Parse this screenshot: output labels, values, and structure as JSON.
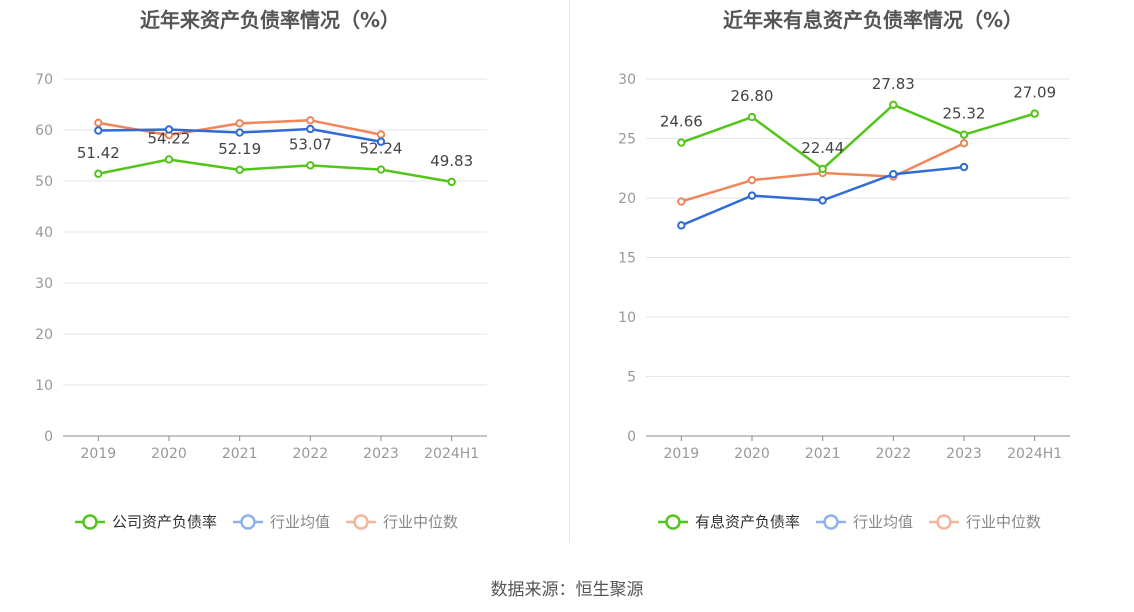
{
  "source_text": "数据来源：恒生聚源",
  "chart_data": [
    {
      "type": "line",
      "title": "近年来资产负债率情况（%）",
      "categories": [
        "2019",
        "2020",
        "2021",
        "2022",
        "2023",
        "2024H1"
      ],
      "ylim": [
        0,
        70
      ],
      "yticks": [
        0,
        10,
        20,
        30,
        40,
        50,
        60,
        70
      ],
      "grid": true,
      "legend_position": "bottom",
      "series": [
        {
          "name": "公司资产负债率",
          "color": "#52c41a",
          "values": [
            51.42,
            54.22,
            52.19,
            53.07,
            52.24,
            49.83
          ],
          "labels": [
            "51.42",
            "54.22",
            "52.19",
            "53.07",
            "52.24",
            "49.83"
          ]
        },
        {
          "name": "行业均值",
          "color": "#2f6bd6",
          "values": [
            59.9,
            60.1,
            59.5,
            60.2,
            57.7,
            null
          ]
        },
        {
          "name": "行业中位数",
          "color": "#f0855a",
          "values": [
            61.4,
            59.0,
            61.3,
            61.9,
            59.1,
            null
          ]
        }
      ]
    },
    {
      "type": "line",
      "title": "近年来有息资产负债率情况（%）",
      "categories": [
        "2019",
        "2020",
        "2021",
        "2022",
        "2023",
        "2024H1"
      ],
      "ylim": [
        0,
        30
      ],
      "yticks": [
        0,
        5,
        10,
        15,
        20,
        25,
        30
      ],
      "grid": true,
      "legend_position": "bottom",
      "series": [
        {
          "name": "有息资产负债率",
          "color": "#52c41a",
          "values": [
            24.66,
            26.8,
            22.44,
            27.83,
            25.32,
            27.09
          ],
          "labels": [
            "24.66",
            "26.80",
            "22.44",
            "27.83",
            "25.32",
            "27.09"
          ]
        },
        {
          "name": "行业均值",
          "color": "#2f6bd6",
          "values": [
            17.7,
            20.2,
            19.8,
            22.0,
            22.6,
            null
          ]
        },
        {
          "name": "行业中位数",
          "color": "#f0855a",
          "values": [
            19.7,
            21.5,
            22.1,
            21.8,
            24.6,
            null
          ]
        }
      ]
    }
  ]
}
